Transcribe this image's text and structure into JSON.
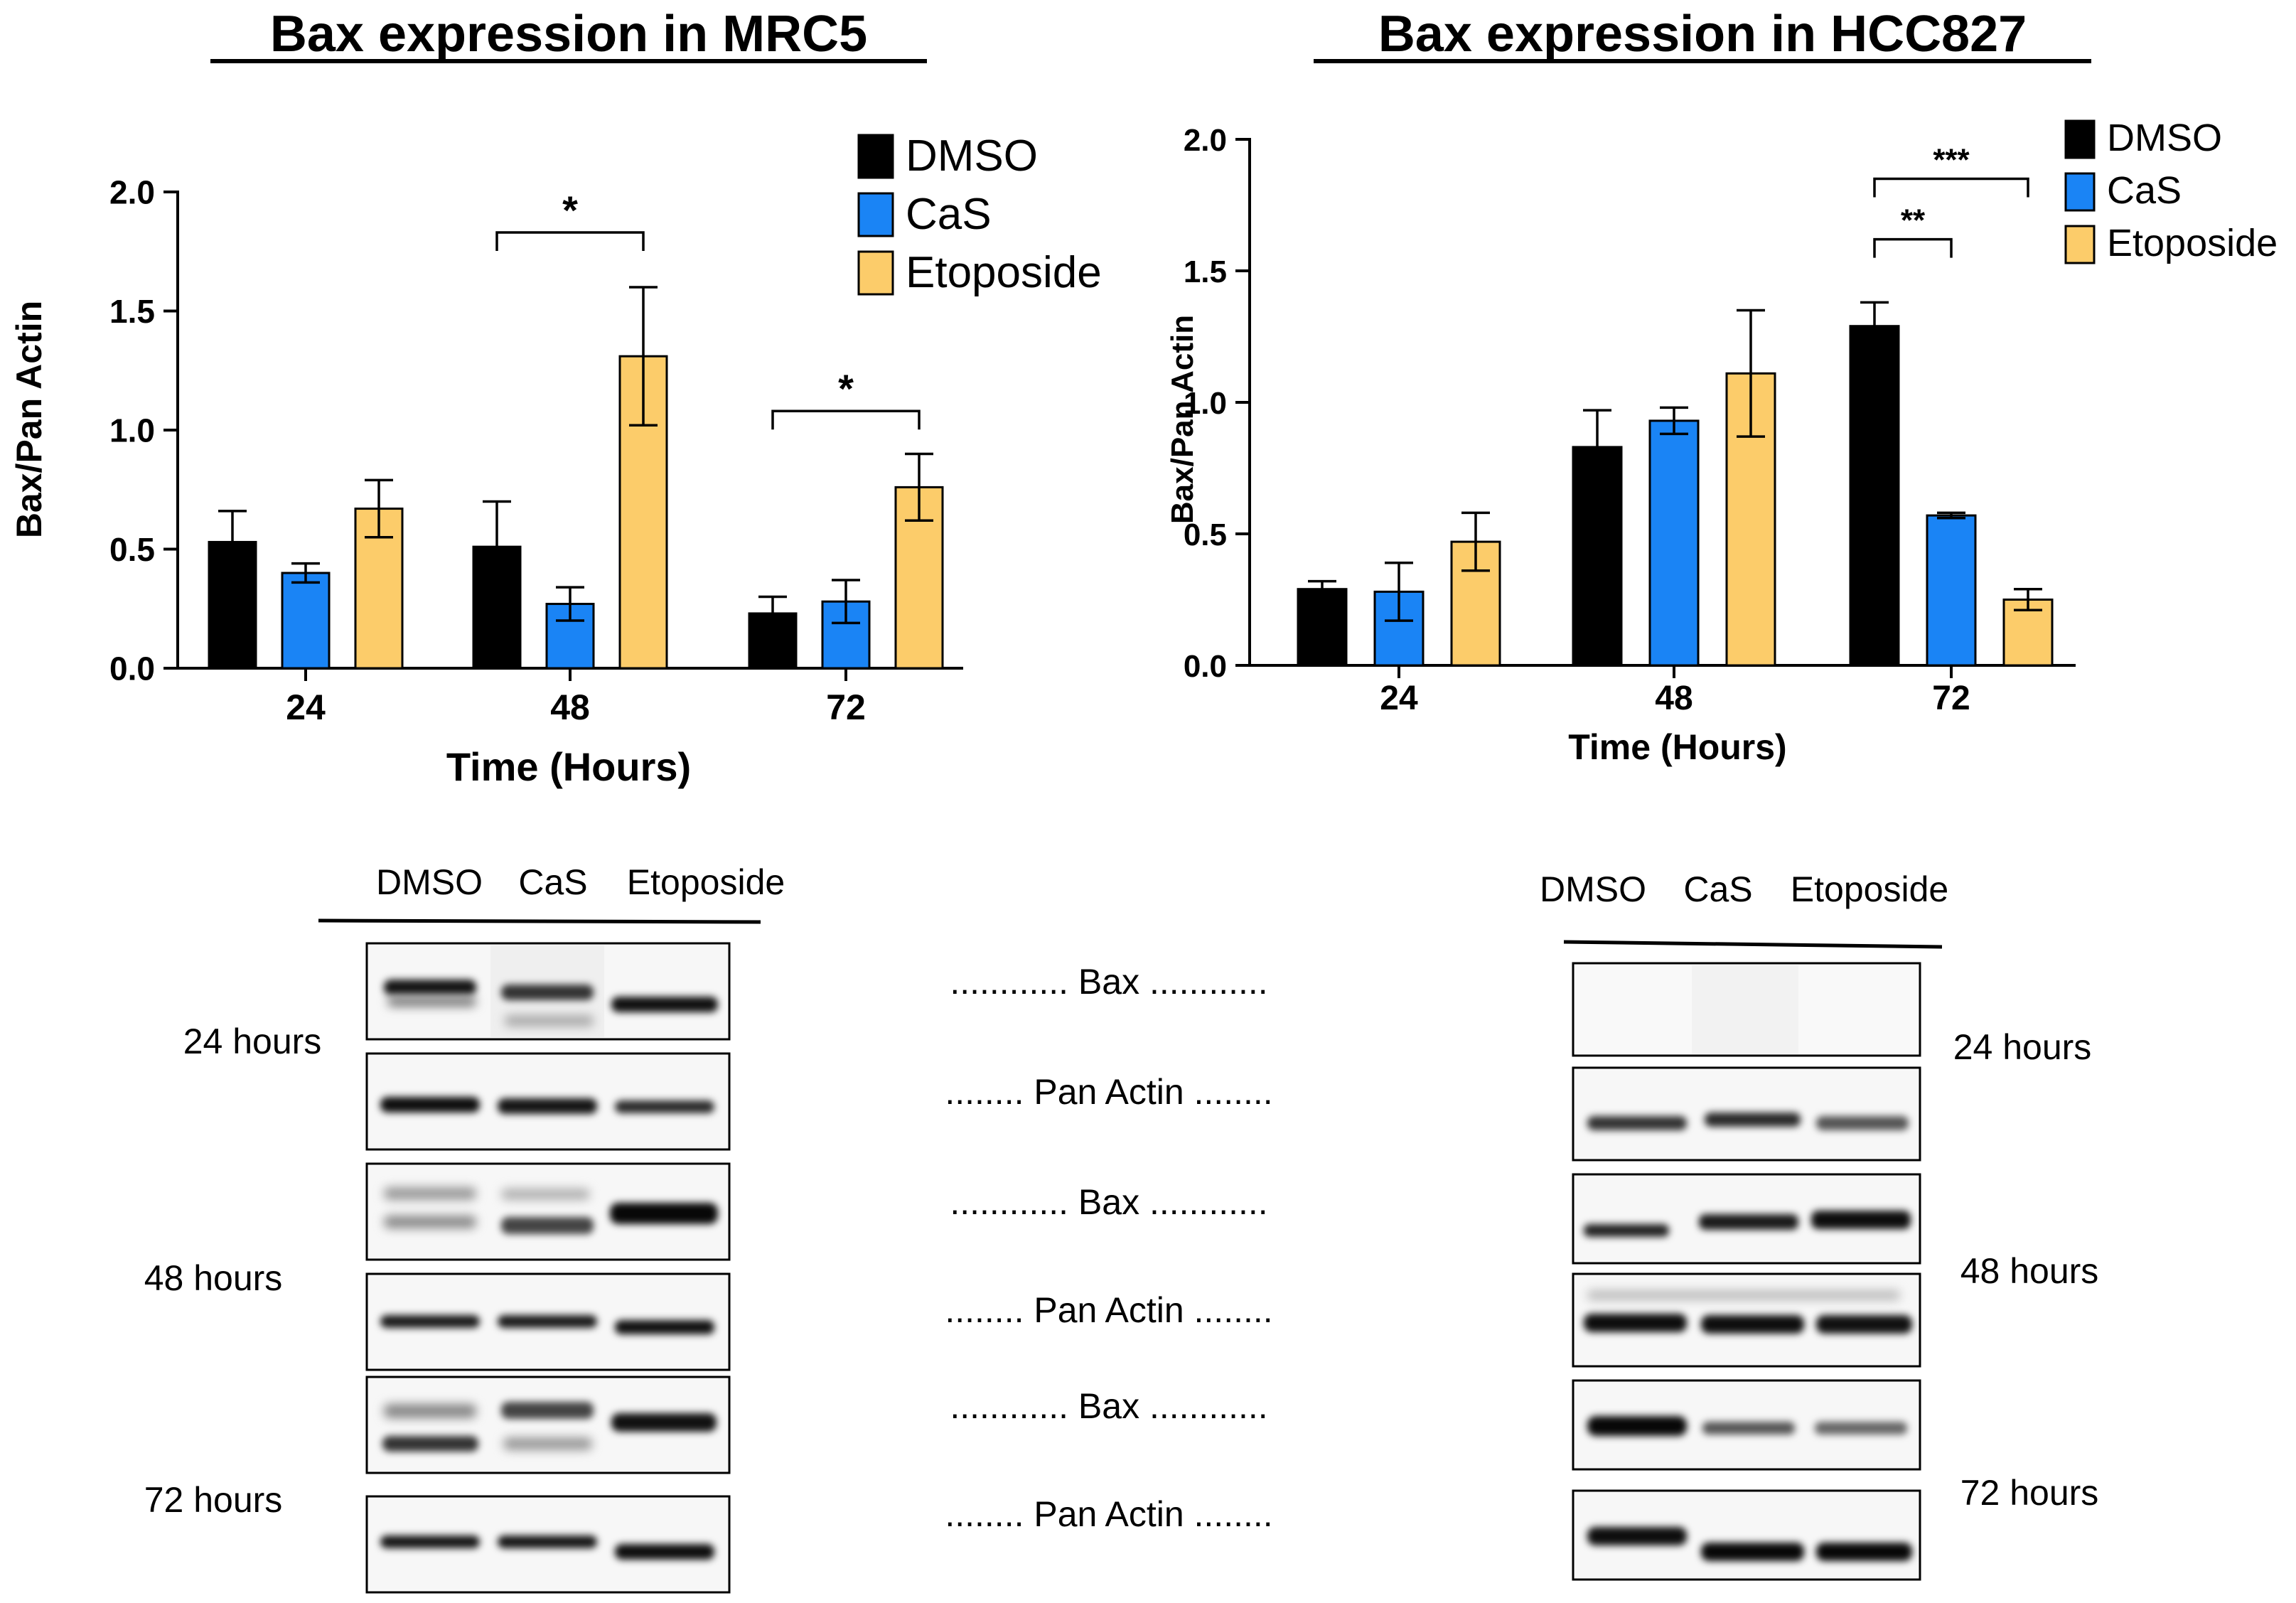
{
  "chart_data": [
    {
      "type": "bar",
      "title": "Bax expression in MRC5",
      "xlabel": "Time (Hours)",
      "ylabel": "Bax/Pan Actin",
      "ylim": [
        0,
        2.0
      ],
      "yticks": [
        "0.0",
        "0.5",
        "1.0",
        "1.5",
        "2.0"
      ],
      "grid": false,
      "legend_position": "top-right",
      "categories": [
        "24",
        "48",
        "72"
      ],
      "series": [
        {
          "name": "DMSO",
          "color": "#000000",
          "values": [
            0.53,
            0.51,
            0.23
          ],
          "errors": [
            0.13,
            0.19,
            0.07
          ]
        },
        {
          "name": "CaS",
          "color": "#1a84f5",
          "values": [
            0.4,
            0.27,
            0.28
          ],
          "errors": [
            0.04,
            0.07,
            0.09
          ]
        },
        {
          "name": "Etoposide",
          "color": "#fccc6a",
          "values": [
            0.67,
            1.31,
            0.76
          ],
          "errors": [
            0.12,
            0.29,
            0.14
          ]
        }
      ],
      "significance": [
        {
          "category": "48",
          "from": "DMSO",
          "to": "Etoposide",
          "label": "*",
          "y": 1.83
        },
        {
          "category": "72",
          "from": "DMSO",
          "to": "Etoposide",
          "label": "*",
          "y": 1.08
        }
      ]
    },
    {
      "type": "bar",
      "title": "Bax expression in HCC827",
      "xlabel": "Time (Hours)",
      "ylabel": "Bax/Pan Actin",
      "ylim": [
        0,
        2.0
      ],
      "yticks": [
        "0.0",
        "0.5",
        "1.0",
        "1.5",
        "2.0"
      ],
      "grid": false,
      "legend_position": "top-right",
      "categories": [
        "24",
        "48",
        "72"
      ],
      "series": [
        {
          "name": "DMSO",
          "color": "#000000",
          "values": [
            0.29,
            0.83,
            1.29
          ],
          "errors": [
            0.03,
            0.14,
            0.09
          ]
        },
        {
          "name": "CaS",
          "color": "#1a84f5",
          "values": [
            0.28,
            0.93,
            0.57
          ],
          "errors": [
            0.11,
            0.05,
            0.01
          ]
        },
        {
          "name": "Etoposide",
          "color": "#fccc6a",
          "values": [
            0.47,
            1.11,
            0.25
          ],
          "errors": [
            0.11,
            0.24,
            0.04
          ]
        }
      ],
      "significance": [
        {
          "category": "72",
          "from": "DMSO",
          "to": "Etoposide",
          "label": "***",
          "y": 1.85
        },
        {
          "category": "72",
          "from": "DMSO",
          "to": "CaS",
          "label": "**",
          "y": 1.62
        }
      ]
    }
  ],
  "blots": {
    "mrc5": {
      "lanes": [
        "DMSO",
        "CaS",
        "Etoposide"
      ],
      "row_labels": [
        "............ Bax ............",
        "........ Pan Actin ........",
        "............ Bax ............",
        "........ Pan Actin ........",
        "............ Bax ............",
        "........ Pan Actin ........"
      ],
      "time_labels": [
        "24 hours",
        "48 hours",
        "72 hours"
      ]
    },
    "hcc827": {
      "lanes": [
        "DMSO",
        "CaS",
        "Etoposide"
      ],
      "time_labels": [
        "24 hours",
        "48 hours",
        "72 hours"
      ]
    }
  }
}
